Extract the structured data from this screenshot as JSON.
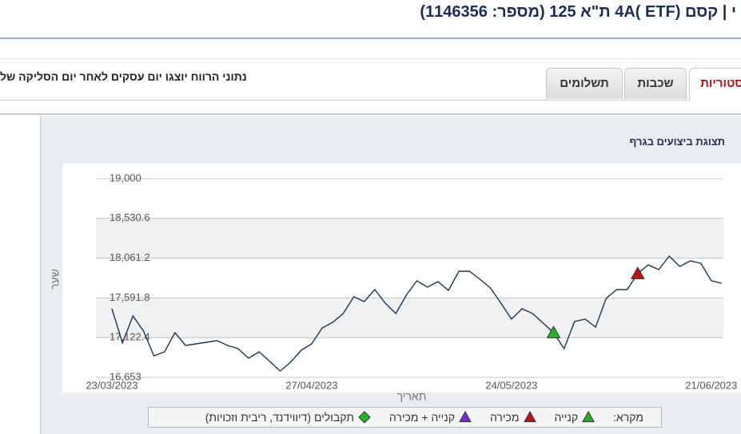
{
  "header": {
    "title": "י | קסם (ETF )4A ת\"א 125 (מספר: 1146356)"
  },
  "tabs": [
    "סטוריות",
    "שכבות",
    "תשלומים"
  ],
  "notice": "נתוני הרווח יוצגו יום עסקים לאחר יום הסליקה של",
  "panel_title": "תצוגת ביצועים בגרף",
  "chart_data": {
    "type": "line",
    "y_label": "שער",
    "x_label": "תאריך",
    "categories": [
      "23/03/2023",
      null,
      null,
      null,
      null,
      null,
      null,
      null,
      null,
      null,
      null,
      null,
      null,
      null,
      null,
      null,
      null,
      null,
      null,
      "27/04/2023",
      null,
      null,
      null,
      null,
      null,
      null,
      null,
      null,
      null,
      null,
      null,
      null,
      null,
      null,
      null,
      null,
      null,
      null,
      "24/05/2023",
      null,
      null,
      null,
      null,
      null,
      null,
      null,
      null,
      null,
      null,
      null,
      null,
      null,
      null,
      null,
      null,
      null,
      null,
      "21/06/2023",
      null
    ],
    "values": [
      17464,
      17058,
      17379,
      17200,
      16907,
      16955,
      17181,
      17030,
      17049,
      17068,
      17087,
      17030,
      16992,
      16879,
      16955,
      16842,
      16728,
      16832,
      16973,
      17049,
      17237,
      17303,
      17407,
      17605,
      17548,
      17690,
      17530,
      17407,
      17624,
      17794,
      17718,
      17784,
      17680,
      17907,
      17907,
      17812,
      17709,
      17530,
      17341,
      17464,
      17407,
      17294,
      17181,
      16992,
      17313,
      17341,
      17247,
      17586,
      17690,
      17690,
      17878,
      17982,
      17925,
      18086,
      17963,
      18029,
      18001,
      17794,
      17765
    ],
    "color": "#1c3550",
    "ylim": [
      16653,
      19000
    ],
    "yticks": [
      {
        "value": 16653,
        "label": "16,653"
      },
      {
        "value": 17122.4,
        "label": "17,122.4"
      },
      {
        "value": 17591.8,
        "label": "17,591.8"
      },
      {
        "value": 18061.2,
        "label": "18,061.2"
      },
      {
        "value": 18530.6,
        "label": "18,530.6"
      },
      {
        "value": 19000,
        "label": "19,000"
      }
    ],
    "grid": true,
    "legend_title": "מקרא:",
    "series": [
      {
        "name": "קנייה",
        "color": "#22b422",
        "marker": "triangle",
        "values": [
          null,
          null,
          null,
          null,
          null,
          null,
          null,
          null,
          null,
          null,
          null,
          null,
          null,
          null,
          null,
          null,
          null,
          null,
          null,
          null,
          null,
          null,
          null,
          null,
          null,
          null,
          null,
          null,
          null,
          null,
          null,
          null,
          null,
          null,
          null,
          null,
          null,
          null,
          null,
          null,
          null,
          null,
          17181,
          null,
          null,
          null,
          null,
          null,
          null,
          null,
          null,
          null,
          null,
          null,
          null,
          null,
          null,
          null,
          null
        ]
      },
      {
        "name": "מכירה",
        "color": "#c0111a",
        "marker": "triangle",
        "values": [
          null,
          null,
          null,
          null,
          null,
          null,
          null,
          null,
          null,
          null,
          null,
          null,
          null,
          null,
          null,
          null,
          null,
          null,
          null,
          null,
          null,
          null,
          null,
          null,
          null,
          null,
          null,
          null,
          null,
          null,
          null,
          null,
          null,
          null,
          null,
          null,
          null,
          null,
          null,
          null,
          null,
          null,
          null,
          null,
          null,
          null,
          null,
          null,
          null,
          null,
          17878,
          null,
          null,
          null,
          null,
          null,
          null,
          null,
          null
        ]
      },
      {
        "name": "קנייה + מכירה",
        "color": "#7a2bd6",
        "marker": "triangle",
        "values": [
          null,
          null,
          null,
          null,
          null,
          null,
          null,
          null,
          null,
          null,
          null,
          null,
          null,
          null,
          null,
          null,
          null,
          null,
          null,
          null,
          null,
          null,
          null,
          null,
          null,
          null,
          null,
          null,
          null,
          null,
          null,
          null,
          null,
          null,
          null,
          null,
          null,
          null,
          null,
          null,
          null,
          null,
          null,
          null,
          null,
          null,
          null,
          null,
          null,
          null,
          null,
          null,
          null,
          null,
          null,
          null,
          null,
          null,
          null
        ]
      },
      {
        "name": "תקבולים (דיווידנד, ריבית וזכויות)",
        "color": "#22b422",
        "marker": "diamond",
        "values": [
          null,
          null,
          null,
          null,
          null,
          null,
          null,
          null,
          null,
          null,
          null,
          null,
          null,
          null,
          null,
          null,
          null,
          null,
          null,
          null,
          null,
          null,
          null,
          null,
          null,
          null,
          null,
          null,
          null,
          null,
          null,
          null,
          null,
          null,
          null,
          null,
          null,
          null,
          null,
          null,
          null,
          null,
          null,
          null,
          null,
          null,
          null,
          null,
          null,
          null,
          null,
          null,
          null,
          null,
          null,
          null,
          null,
          null,
          null
        ]
      }
    ]
  }
}
